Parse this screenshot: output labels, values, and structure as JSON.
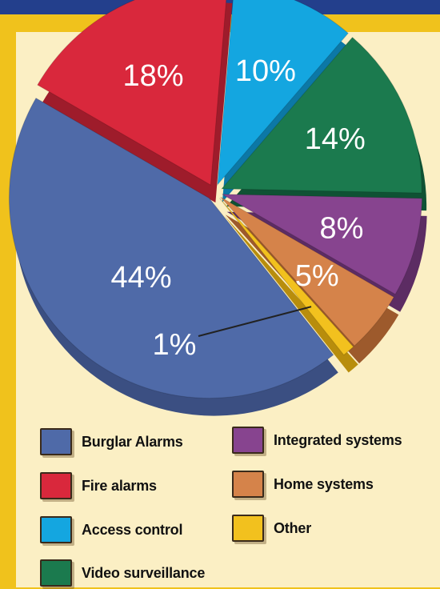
{
  "chart_data": {
    "type": "pie",
    "title": "",
    "slices": [
      {
        "label": "Burglar Alarms",
        "value": 44,
        "text": "44%",
        "color": "#4f6aa8",
        "side": "#3b4f82"
      },
      {
        "label": "Fire alarms",
        "value": 18,
        "text": "18%",
        "color": "#d9283c",
        "side": "#9e1c2b"
      },
      {
        "label": "Access control",
        "value": 10,
        "text": "10%",
        "color": "#14a6e0",
        "side": "#0c78a6"
      },
      {
        "label": "Video surveillance",
        "value": 14,
        "text": "14%",
        "color": "#1b7a4e",
        "side": "#0f5234"
      },
      {
        "label": "Integrated systems",
        "value": 8,
        "text": "8%",
        "color": "#87448f",
        "side": "#5c2c63"
      },
      {
        "label": "Home systems",
        "value": 5,
        "text": "5%",
        "color": "#d5834a",
        "side": "#9d5a2c"
      },
      {
        "label": "Other",
        "value": 1,
        "text": "1%",
        "color": "#f2c11e",
        "side": "#b88d0c"
      }
    ]
  }
}
